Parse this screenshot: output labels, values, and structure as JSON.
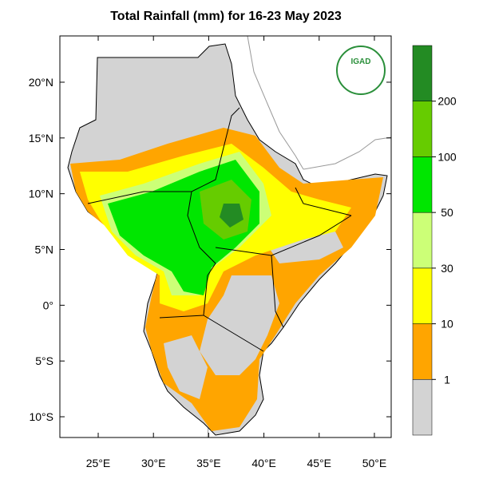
{
  "title": "Total Rainfall (mm) for 16-23 May 2023",
  "logo_text": "IGAD",
  "map": {
    "xlim": [
      21.53,
      51.52
    ],
    "ylim": [
      -11.86,
      24.15
    ],
    "xticks": [
      {
        "value": 25,
        "label": "25°E"
      },
      {
        "value": 30,
        "label": "30°E"
      },
      {
        "value": 35,
        "label": "35°E"
      },
      {
        "value": 40,
        "label": "40°E"
      },
      {
        "value": 45,
        "label": "45°E"
      },
      {
        "value": 50,
        "label": "50°E"
      }
    ],
    "yticks": [
      {
        "value": 20,
        "label": "20°N"
      },
      {
        "value": 15,
        "label": "15°N"
      },
      {
        "value": 10,
        "label": "10°N"
      },
      {
        "value": 5,
        "label": "5°N"
      },
      {
        "value": 0,
        "label": "0°"
      },
      {
        "value": -5,
        "label": "5°S"
      },
      {
        "value": -10,
        "label": "10°S"
      }
    ]
  },
  "colorbar": {
    "levels": [
      1,
      10,
      30,
      50,
      100,
      200
    ],
    "colors": [
      "#d3d3d3",
      "#ffa500",
      "#ffff00",
      "#ccff77",
      "#00e600",
      "#66cc00",
      "#238b23"
    ]
  }
}
